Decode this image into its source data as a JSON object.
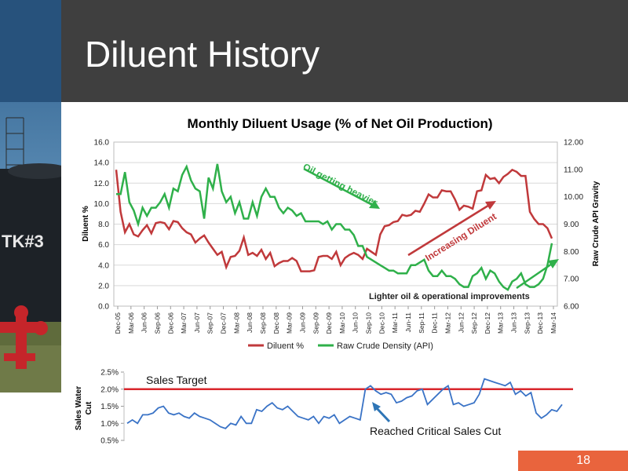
{
  "slide": {
    "title": "Diluent History",
    "page_number": "18",
    "sidebar_tank_label": "TK#3"
  },
  "colors": {
    "header_bg": "#3f3f3f",
    "diluent": "#c0393b",
    "api": "#2fb04a",
    "target": "#d9262c",
    "page_box": "#e9643d",
    "annotation_blue": "#2e75b6"
  },
  "chart_data": [
    {
      "type": "line",
      "title": "Monthly Diluent Usage (% of Net Oil Production)",
      "ylabel": "Diluent %",
      "y2label": "Raw Crude API Gravity",
      "ylim": [
        0,
        16
      ],
      "y2lim": [
        6,
        12
      ],
      "yticks": [
        "0.0",
        "2.0",
        "4.0",
        "6.0",
        "8.0",
        "10.0",
        "12.0",
        "14.0",
        "16.0"
      ],
      "y2ticks": [
        "6.00",
        "7.00",
        "8.00",
        "9.00",
        "10.00",
        "11.00",
        "12.00"
      ],
      "x_tick_labels": [
        "Dec-05",
        "Mar-06",
        "Jun-06",
        "Sep-06",
        "Dec-06",
        "Mar-07",
        "Jun-07",
        "Sep-07",
        "Dec-07",
        "Mar-08",
        "Jun-08",
        "Sep-08",
        "Dec-08",
        "Mar-09",
        "Jun-09",
        "Sep-09",
        "Dec-09",
        "Mar-10",
        "Jun-10",
        "Sep-10",
        "Dec-10",
        "Mar-11",
        "Jun-11",
        "Sep-11",
        "Dec-11",
        "Mar-12",
        "Jun-12",
        "Sep-12",
        "Dec-12",
        "Mar-13",
        "Jun-13",
        "Sep-13",
        "Dec-13",
        "Mar-14"
      ],
      "legend_position": "bottom",
      "legend": [
        "Diluent %",
        "Raw Crude Density (API)"
      ],
      "series": [
        {
          "name": "Diluent %",
          "axis": "left",
          "values": [
            13.3,
            9.2,
            7.2,
            8.0,
            7.0,
            6.8,
            7.4,
            7.9,
            7.1,
            8.1,
            8.2,
            8.1,
            7.5,
            8.3,
            8.2,
            7.6,
            7.2,
            7.0,
            6.2,
            6.6,
            6.9,
            6.2,
            5.6,
            5.0,
            5.3,
            3.8,
            4.8,
            4.9,
            5.4,
            6.7,
            5.0,
            5.2,
            4.9,
            5.5,
            4.6,
            5.2,
            3.9,
            4.2,
            4.4,
            4.4,
            4.7,
            4.4,
            3.4,
            3.4,
            3.4,
            3.5,
            4.8,
            4.9,
            4.9,
            4.6,
            5.3,
            4.0,
            4.7,
            5.0,
            5.2,
            5.0,
            4.6,
            5.6,
            5.3,
            5.0,
            7.0,
            7.8,
            7.9,
            8.2,
            8.3,
            8.9,
            8.8,
            8.9,
            9.3,
            9.2,
            10.0,
            10.9,
            10.6,
            10.6,
            11.3,
            11.2,
            11.2,
            10.4,
            9.4,
            9.8,
            9.7,
            9.5,
            11.2,
            11.3,
            12.8,
            12.4,
            12.5,
            12.0,
            12.6,
            12.9,
            13.3,
            13.1,
            12.7,
            12.7,
            9.2,
            8.5,
            8.0,
            8.0,
            7.6,
            6.6
          ]
        },
        {
          "name": "Raw Crude Density (API)",
          "axis": "right",
          "values": [
            10.1,
            10.1,
            10.9,
            9.8,
            9.5,
            9.0,
            9.6,
            9.3,
            9.6,
            9.6,
            9.8,
            10.1,
            9.6,
            10.3,
            10.2,
            10.8,
            11.1,
            10.6,
            10.3,
            10.2,
            9.2,
            10.7,
            10.3,
            11.2,
            10.2,
            9.8,
            10.0,
            9.4,
            9.8,
            9.2,
            9.2,
            9.8,
            9.3,
            10.0,
            10.3,
            10.0,
            10.0,
            9.6,
            9.4,
            9.6,
            9.5,
            9.3,
            9.4,
            9.1,
            9.1,
            9.1,
            9.1,
            9.0,
            9.1,
            8.8,
            9.0,
            9.0,
            8.8,
            8.8,
            8.6,
            8.2,
            8.2,
            7.8,
            7.7,
            7.6,
            7.5,
            7.4,
            7.3,
            7.3,
            7.2,
            7.2,
            7.2,
            7.5,
            7.5,
            7.6,
            7.7,
            7.3,
            7.1,
            7.1,
            7.3,
            7.1,
            7.1,
            7.0,
            6.8,
            6.7,
            6.7,
            7.1,
            7.2,
            7.4,
            7.0,
            7.3,
            7.2,
            6.9,
            6.7,
            6.6,
            6.9,
            7.0,
            7.2,
            6.8,
            6.7,
            6.7,
            6.8,
            7.0,
            7.5,
            8.3
          ]
        }
      ],
      "annotations": [
        {
          "text": "Oil getting heavier",
          "color": "#2fb04a"
        },
        {
          "text": "Increasing Diluent",
          "color": "#c0393b"
        },
        {
          "text": "Lighter oil & operational improvements",
          "color": "#2fb04a"
        }
      ]
    },
    {
      "type": "line",
      "ylabel": "Sales Water Cut",
      "ylim": [
        0.5,
        2.5
      ],
      "yticks": [
        "0.5%",
        "1.0%",
        "1.5%",
        "2.0%",
        "2.5%"
      ],
      "target": {
        "label": "Sales Target",
        "value": 2.0
      },
      "series": [
        {
          "name": "Sales Water Cut",
          "values": [
            1.0,
            1.1,
            1.0,
            1.25,
            1.25,
            1.3,
            1.45,
            1.5,
            1.3,
            1.25,
            1.3,
            1.2,
            1.15,
            1.3,
            1.2,
            1.15,
            1.1,
            1.0,
            0.9,
            0.85,
            1.0,
            0.95,
            1.2,
            1.0,
            1.0,
            1.4,
            1.35,
            1.5,
            1.6,
            1.45,
            1.4,
            1.5,
            1.35,
            1.2,
            1.15,
            1.1,
            1.2,
            1.0,
            1.2,
            1.15,
            1.25,
            1.0,
            1.1,
            1.2,
            1.15,
            1.1,
            2.0,
            2.1,
            1.95,
            1.85,
            1.9,
            1.85,
            1.6,
            1.65,
            1.75,
            1.8,
            1.95,
            2.0,
            1.55,
            1.7,
            1.85,
            2.0,
            2.1,
            1.55,
            1.6,
            1.5,
            1.55,
            1.6,
            1.85,
            2.3,
            2.25,
            2.2,
            2.15,
            2.1,
            2.2,
            1.85,
            1.95,
            1.8,
            1.9,
            1.3,
            1.15,
            1.25,
            1.4,
            1.35,
            1.55
          ]
        }
      ],
      "annotations": [
        {
          "text": "Reached Critical Sales Cut"
        }
      ]
    }
  ]
}
